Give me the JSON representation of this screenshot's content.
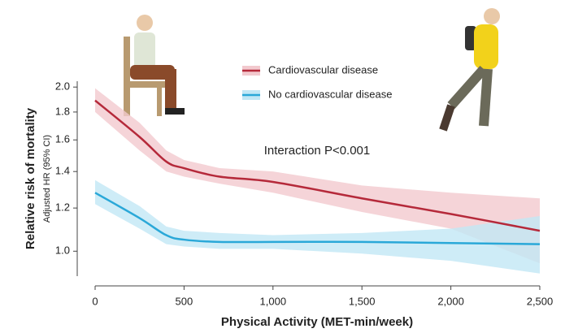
{
  "chart_data": {
    "type": "line",
    "annotation": "Interaction P<0.001",
    "x_label": "Physical Activity (MET-min/week)",
    "y_label": "Relative risk of mortality",
    "y_sublabel": "Adjusted HR (95% CI)",
    "x": [
      0,
      250,
      400,
      500,
      700,
      1000,
      1500,
      2000,
      2500
    ],
    "series": [
      {
        "name": "Cardiovascular disease",
        "color": "#b5293a",
        "band_color": "#f2c9ce",
        "values": [
          1.89,
          1.62,
          1.46,
          1.42,
          1.37,
          1.34,
          1.25,
          1.17,
          1.09
        ],
        "upper": [
          1.99,
          1.72,
          1.53,
          1.47,
          1.42,
          1.4,
          1.32,
          1.28,
          1.25
        ],
        "lower": [
          1.8,
          1.53,
          1.4,
          1.37,
          1.33,
          1.28,
          1.18,
          1.1,
          0.95
        ]
      },
      {
        "name": "No cardiovascular disease",
        "color": "#2aa8d8",
        "band_color": "#c2e7f5",
        "values": [
          1.28,
          1.15,
          1.07,
          1.05,
          1.04,
          1.04,
          1.04,
          1.035,
          1.03
        ],
        "upper": [
          1.35,
          1.21,
          1.11,
          1.09,
          1.08,
          1.07,
          1.08,
          1.1,
          1.16
        ],
        "lower": [
          1.22,
          1.1,
          1.03,
          1.02,
          1.01,
          1.01,
          0.99,
          0.96,
          0.91
        ]
      }
    ],
    "xlim": [
      0,
      2500
    ],
    "xticks": [
      0,
      500,
      {
        "value": 1000,
        "label": "1,000"
      },
      {
        "value": 1500,
        "label": "1,500"
      },
      {
        "value": 2000,
        "label": "2,000"
      },
      {
        "value": 2500,
        "label": "2,500"
      }
    ],
    "ylim": [
      0.9,
      2.05
    ],
    "yticks": [
      {
        "value": 1,
        "label": "1.0"
      },
      1.2,
      1.4,
      1.6,
      1.8,
      {
        "value": 2,
        "label": "2.0"
      }
    ],
    "y_scale": "log"
  }
}
